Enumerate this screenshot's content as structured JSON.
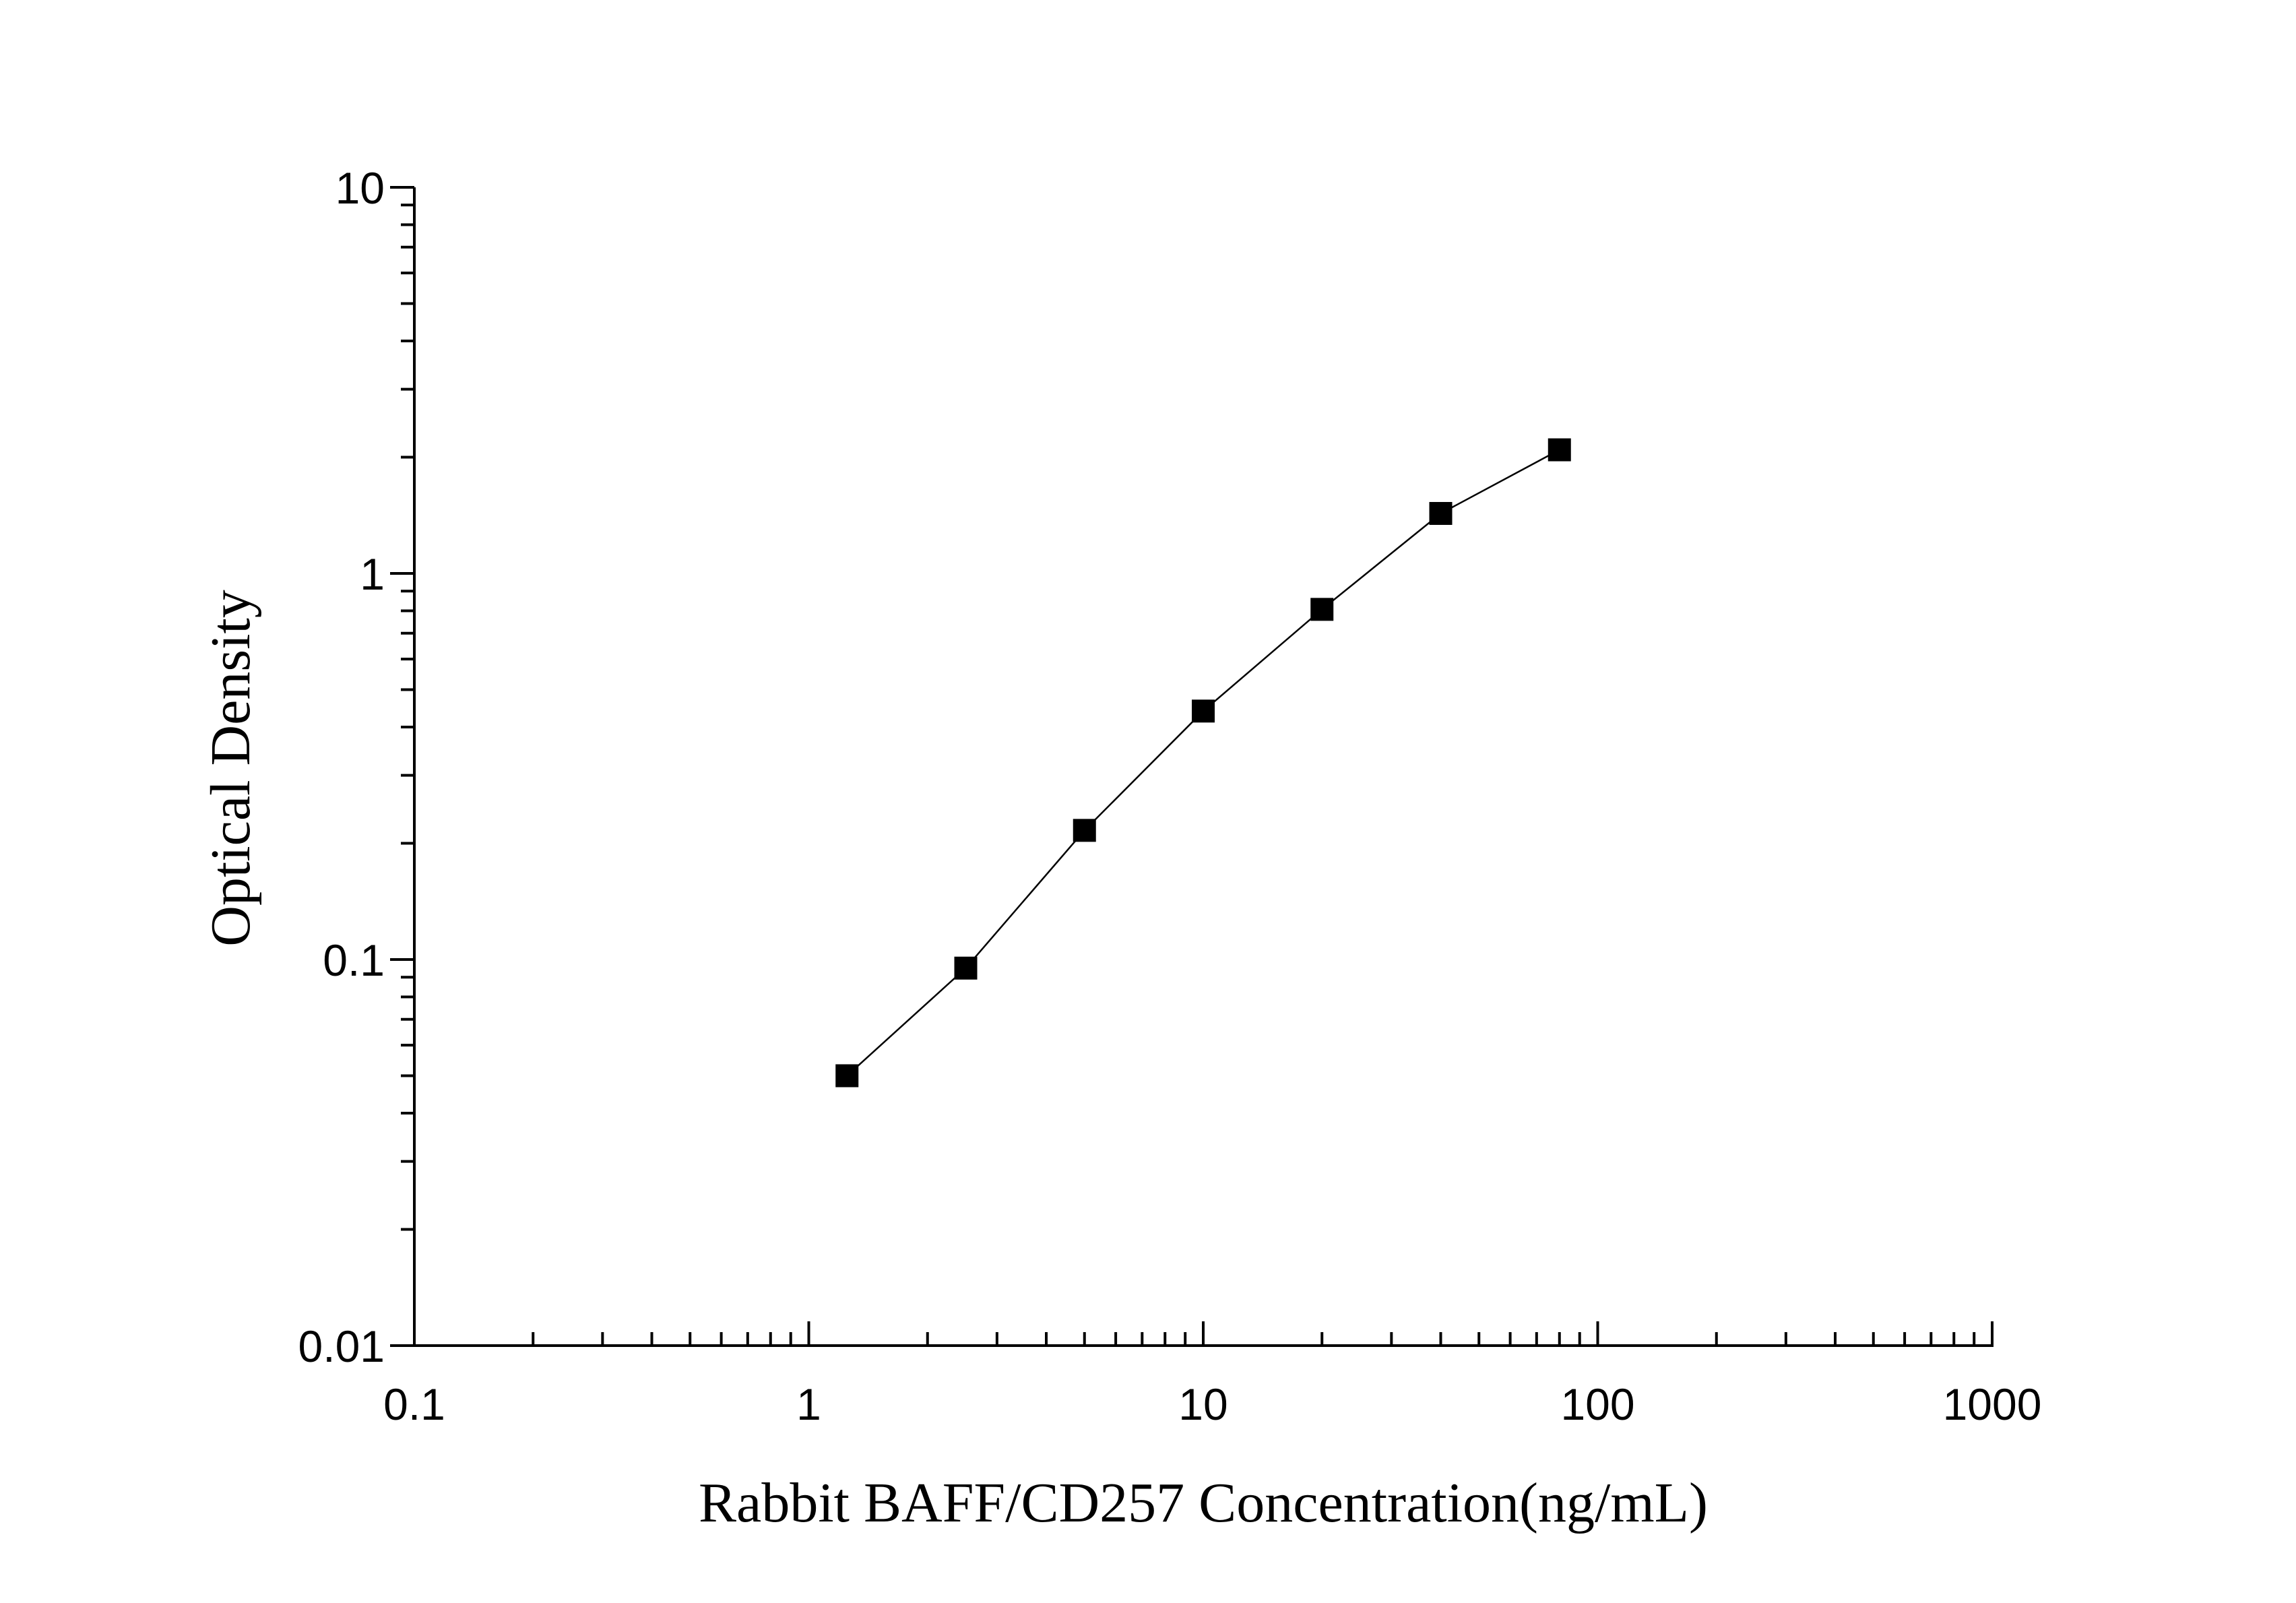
{
  "chart_data": {
    "type": "line",
    "x_label": "Rabbit BAFF/CD257 Concentration(ng/mL)",
    "y_label": "Optical Density",
    "x": [
      1.25,
      2.5,
      5,
      10,
      20,
      40,
      80
    ],
    "series": [
      {
        "color": "#000000",
        "values": [
          0.05,
          0.095,
          0.216,
          0.44,
          0.807,
          1.43,
          2.09
        ]
      }
    ],
    "xlim": [
      0.1,
      1000
    ],
    "ylim": [
      0.01,
      10
    ],
    "xticks": [
      0.1,
      1,
      10,
      100,
      1000
    ],
    "yticks": [
      0.01,
      0.1,
      1,
      10
    ],
    "xscale": "log",
    "yscale": "log",
    "grid": false,
    "marker": "square"
  }
}
